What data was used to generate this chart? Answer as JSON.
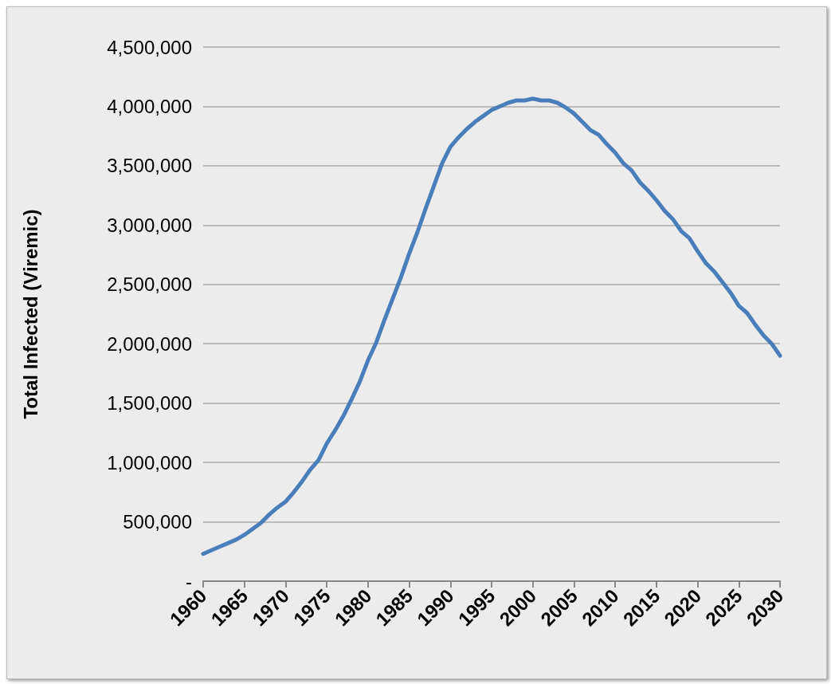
{
  "chart_data": {
    "type": "line",
    "ylabel": "Total Infected (Viremic)",
    "x": [
      1960,
      1961,
      1962,
      1963,
      1964,
      1965,
      1966,
      1967,
      1968,
      1969,
      1970,
      1971,
      1972,
      1973,
      1974,
      1975,
      1976,
      1977,
      1978,
      1979,
      1980,
      1981,
      1982,
      1983,
      1984,
      1985,
      1986,
      1987,
      1988,
      1989,
      1990,
      1991,
      1992,
      1993,
      1994,
      1995,
      1996,
      1997,
      1998,
      1999,
      2000,
      2001,
      2002,
      2003,
      2004,
      2005,
      2006,
      2007,
      2008,
      2009,
      2010,
      2011,
      2012,
      2013,
      2014,
      2015,
      2016,
      2017,
      2018,
      2019,
      2020,
      2021,
      2022,
      2023,
      2024,
      2025,
      2026,
      2027,
      2028,
      2029,
      2030
    ],
    "series": [
      {
        "color": "#4a7ebb",
        "values": [
          230000,
          260000,
          290000,
          320000,
          350000,
          390000,
          440000,
          490000,
          560000,
          620000,
          670000,
          750000,
          840000,
          940000,
          1020000,
          1160000,
          1270000,
          1390000,
          1530000,
          1680000,
          1860000,
          2010000,
          2200000,
          2380000,
          2560000,
          2760000,
          2940000,
          3140000,
          3330000,
          3520000,
          3660000,
          3740000,
          3810000,
          3870000,
          3920000,
          3970000,
          4000000,
          4030000,
          4050000,
          4050000,
          4065000,
          4050000,
          4050000,
          4030000,
          3990000,
          3940000,
          3870000,
          3800000,
          3760000,
          3680000,
          3610000,
          3520000,
          3460000,
          3360000,
          3290000,
          3210000,
          3120000,
          3050000,
          2950000,
          2890000,
          2780000,
          2680000,
          2610000,
          2520000,
          2430000,
          2320000,
          2260000,
          2160000,
          2070000,
          2000000,
          1900000
        ]
      }
    ],
    "xlim": [
      1960,
      2030
    ],
    "xticks": [
      1960,
      1965,
      1970,
      1975,
      1980,
      1985,
      1990,
      1995,
      2000,
      2005,
      2010,
      2015,
      2020,
      2025,
      2030
    ],
    "ylim": [
      0,
      4500000
    ],
    "yticks": [
      {
        "value": 0,
        "label": "-"
      },
      {
        "value": 500000,
        "label": "500,000"
      },
      {
        "value": 1000000,
        "label": "1,000,000"
      },
      {
        "value": 1500000,
        "label": "1,500,000"
      },
      {
        "value": 2000000,
        "label": "2,000,000"
      },
      {
        "value": 2500000,
        "label": "2,500,000"
      },
      {
        "value": 3000000,
        "label": "3,000,000"
      },
      {
        "value": 3500000,
        "label": "3,500,000"
      },
      {
        "value": 4000000,
        "label": "4,000,000"
      },
      {
        "value": 4500000,
        "label": "4,500,000"
      }
    ],
    "grid": "y",
    "marker": "none",
    "line_style": "solid"
  }
}
